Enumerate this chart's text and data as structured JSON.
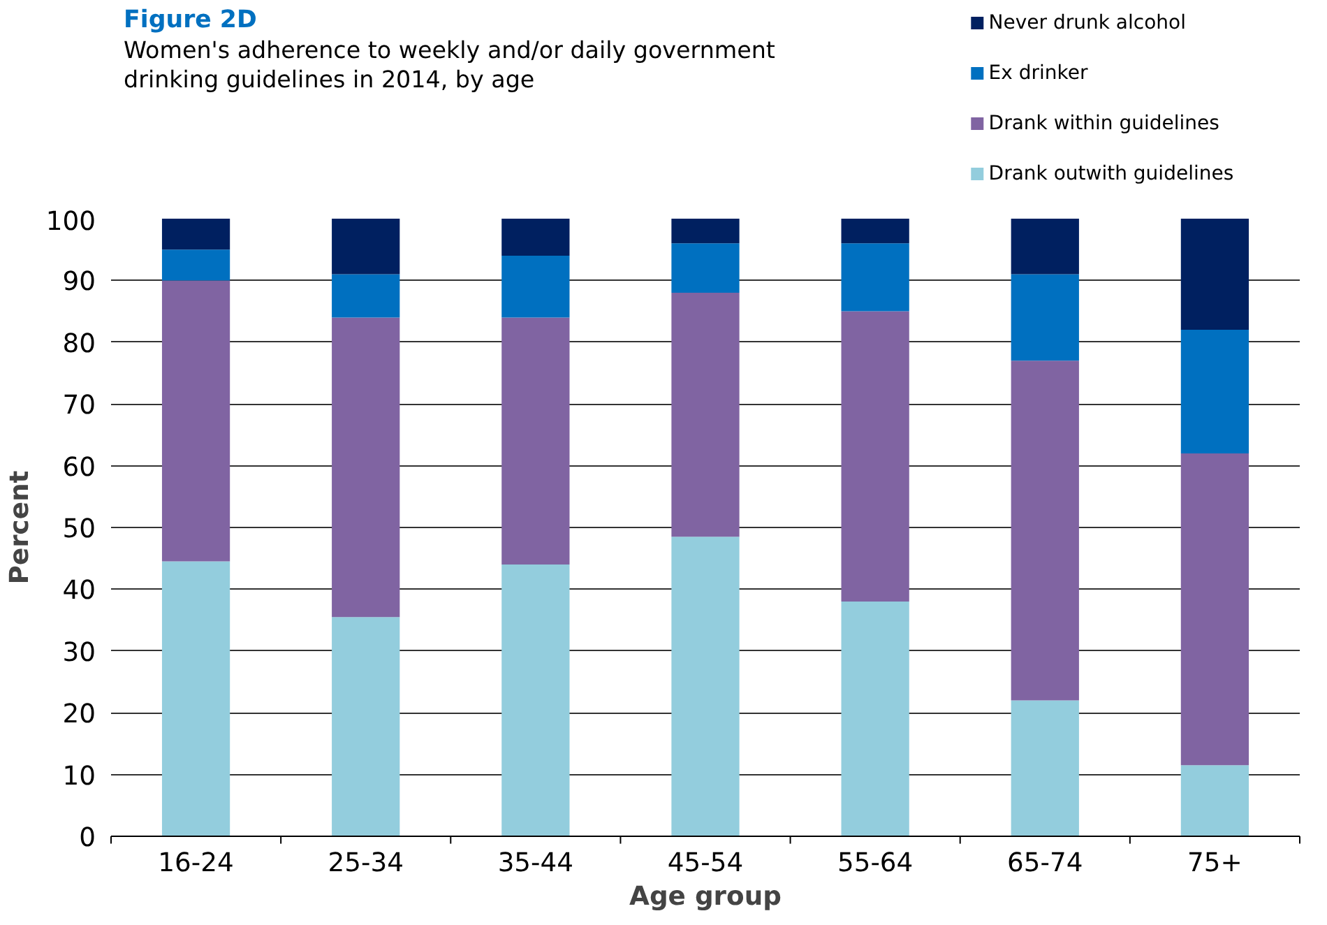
{
  "chart_data": {
    "type": "bar",
    "stacked": true,
    "title": "Figure 2D",
    "subtitle": "Women's adherence to weekly and/or daily government\ndrinking guidelines in 2014, by age",
    "xlabel": "Age group",
    "ylabel": "Percent",
    "categories": [
      "16-24",
      "25-34",
      "35-44",
      "45-54",
      "55-64",
      "65-74",
      "75+"
    ],
    "series": [
      {
        "name": "Drank outwith guidelines",
        "color": "#93cddd",
        "values": [
          44.5,
          35.5,
          44,
          48.5,
          38,
          22,
          11.5
        ]
      },
      {
        "name": "Drank within guidelines",
        "color": "#8064a2",
        "values": [
          45.5,
          48.5,
          40,
          39.5,
          47,
          55,
          50.5
        ]
      },
      {
        "name": "Ex drinker",
        "color": "#0070c0",
        "values": [
          5,
          7,
          10,
          8,
          11,
          14,
          20
        ]
      },
      {
        "name": "Never drunk alcohol",
        "color": "#002060",
        "values": [
          5,
          9,
          6,
          4,
          4,
          9,
          18
        ]
      }
    ],
    "ylim": [
      0,
      100
    ],
    "yticks": [
      0,
      10,
      20,
      30,
      40,
      50,
      60,
      70,
      80,
      90,
      100
    ],
    "grid": "y",
    "legend": "top right"
  }
}
